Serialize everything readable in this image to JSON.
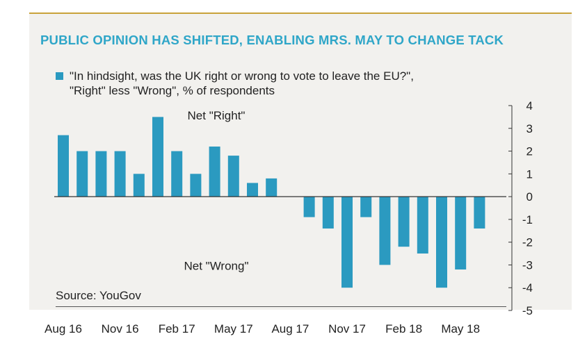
{
  "chart_data": {
    "type": "bar",
    "title": "PUBLIC OPINION HAS SHIFTED, ENABLING MRS. MAY TO CHANGE TACK",
    "legend": [
      {
        "line1": "\"In hindsight, was the UK right or wrong to vote to leave the EU?\",",
        "line2": "\"Right\" less \"Wrong\", % of respondents"
      }
    ],
    "series_color": "#2b9ac0",
    "values": [
      2.7,
      2.0,
      2.0,
      2.0,
      1.0,
      3.5,
      2.0,
      1.0,
      2.2,
      1.8,
      0.6,
      0.8,
      null,
      -0.9,
      -1.4,
      -4.0,
      -0.9,
      -3.0,
      -2.2,
      -2.5,
      -4.0,
      -3.2,
      -1.4
    ],
    "tick_labels": [
      "Aug 16",
      "Nov 16",
      "Feb 17",
      "May 17",
      "Aug 17",
      "Nov 17",
      "Feb 18",
      "May 18"
    ],
    "tick_indices": [
      0,
      3,
      6,
      9,
      12,
      15,
      18,
      21
    ],
    "ylim": [
      -5,
      4
    ],
    "yticks": [
      4,
      3,
      2,
      1,
      0,
      -1,
      -2,
      -3,
      -4,
      -5
    ],
    "annotations": [
      {
        "text": "Net \"Right\"",
        "x_index": 10,
        "y": 3.6
      },
      {
        "text": "Net \"Wrong\"",
        "x_index": 10,
        "y": -3.0
      }
    ],
    "axis_side": "right",
    "grid": false
  },
  "source": "Source: YouGov"
}
